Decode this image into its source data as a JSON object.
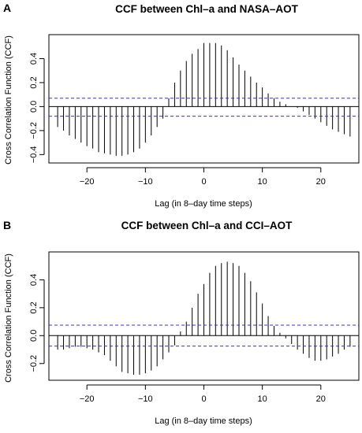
{
  "chart_data": [
    {
      "panel_label": "A",
      "type": "bar",
      "title": "CCF between Chl–a and NASA–AOT",
      "xlabel": "Lag (in 8–day time steps)",
      "ylabel": "Cross Correlation Function (CCF)",
      "xlim": [
        -26.5,
        26.5
      ],
      "ylim": [
        -0.47,
        0.6
      ],
      "xticks": [
        -20,
        -10,
        0,
        10,
        20
      ],
      "xtick_labels": [
        "−20",
        "−10",
        "0",
        "10",
        "20"
      ],
      "yticks": [
        -0.4,
        -0.2,
        0.0,
        0.2,
        0.4
      ],
      "ytick_labels": [
        "−0.4",
        "−0.2",
        "0.0",
        "0.2",
        "0.4"
      ],
      "confidence_bounds": [
        0.07,
        -0.08
      ],
      "lags": [
        -25,
        -24,
        -23,
        -22,
        -21,
        -20,
        -19,
        -18,
        -17,
        -16,
        -15,
        -14,
        -13,
        -12,
        -11,
        -10,
        -9,
        -8,
        -7,
        -6,
        -5,
        -4,
        -3,
        -2,
        -1,
        0,
        1,
        2,
        3,
        4,
        5,
        6,
        7,
        8,
        9,
        10,
        11,
        12,
        13,
        14,
        15,
        16,
        17,
        18,
        19,
        20,
        21,
        22,
        23,
        24,
        25
      ],
      "values": [
        -0.17,
        -0.2,
        -0.24,
        -0.27,
        -0.3,
        -0.33,
        -0.35,
        -0.38,
        -0.39,
        -0.4,
        -0.41,
        -0.41,
        -0.4,
        -0.38,
        -0.35,
        -0.3,
        -0.24,
        -0.17,
        -0.1,
        0.07,
        0.2,
        0.3,
        0.38,
        0.44,
        0.48,
        0.53,
        0.53,
        0.53,
        0.51,
        0.47,
        0.41,
        0.35,
        0.3,
        0.25,
        0.2,
        0.16,
        0.11,
        0.07,
        0.04,
        0.02,
        0.0,
        -0.01,
        -0.04,
        -0.07,
        -0.1,
        -0.13,
        -0.16,
        -0.19,
        -0.21,
        -0.23,
        -0.25
      ],
      "grid": false
    },
    {
      "panel_label": "B",
      "type": "bar",
      "title": "CCF between Chl–a and CCI–AOT",
      "xlabel": "Lag (in 8–day time steps)",
      "ylabel": "Cross Correlation Function (CCF)",
      "xlim": [
        -26.5,
        26.5
      ],
      "ylim": [
        -0.32,
        0.6
      ],
      "xticks": [
        -20,
        -10,
        0,
        10,
        20
      ],
      "xtick_labels": [
        "−20",
        "−10",
        "0",
        "10",
        "20"
      ],
      "yticks": [
        -0.2,
        0.0,
        0.2,
        0.4
      ],
      "ytick_labels": [
        "−0.2",
        "0.0",
        "0.2",
        "0.4"
      ],
      "confidence_bounds": [
        0.075,
        -0.075
      ],
      "lags": [
        -25,
        -24,
        -23,
        -22,
        -21,
        -20,
        -19,
        -18,
        -17,
        -16,
        -15,
        -14,
        -13,
        -12,
        -11,
        -10,
        -9,
        -8,
        -7,
        -6,
        -5,
        -4,
        -3,
        -2,
        -1,
        0,
        1,
        2,
        3,
        4,
        5,
        6,
        7,
        8,
        9,
        10,
        11,
        12,
        13,
        14,
        15,
        16,
        17,
        18,
        19,
        20,
        21,
        22,
        23,
        24,
        25
      ],
      "values": [
        -0.1,
        -0.1,
        -0.09,
        -0.08,
        -0.08,
        -0.09,
        -0.1,
        -0.12,
        -0.14,
        -0.18,
        -0.22,
        -0.26,
        -0.27,
        -0.28,
        -0.28,
        -0.27,
        -0.25,
        -0.22,
        -0.17,
        -0.12,
        -0.07,
        0.03,
        0.1,
        0.2,
        0.3,
        0.37,
        0.45,
        0.5,
        0.52,
        0.53,
        0.52,
        0.5,
        0.45,
        0.39,
        0.31,
        0.23,
        0.14,
        0.07,
        0.02,
        -0.02,
        -0.06,
        -0.1,
        -0.13,
        -0.16,
        -0.18,
        -0.18,
        -0.17,
        -0.15,
        -0.13,
        -0.1,
        -0.08
      ],
      "grid": false
    }
  ]
}
